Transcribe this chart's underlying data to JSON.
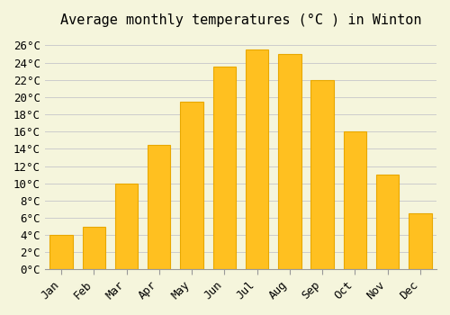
{
  "title": "Average monthly temperatures (°C ) in Winton",
  "months": [
    "Jan",
    "Feb",
    "Mar",
    "Apr",
    "May",
    "Jun",
    "Jul",
    "Aug",
    "Sep",
    "Oct",
    "Nov",
    "Dec"
  ],
  "values": [
    4,
    5,
    10,
    14.5,
    19.5,
    23.5,
    25.5,
    25,
    22,
    16,
    11,
    6.5
  ],
  "bar_color": "#FFC020",
  "bar_edge_color": "#E8A800",
  "background_color": "#F5F5DC",
  "grid_color": "#CCCCCC",
  "ylim": [
    0,
    27
  ],
  "yticks": [
    0,
    2,
    4,
    6,
    8,
    10,
    12,
    14,
    16,
    18,
    20,
    22,
    24,
    26
  ],
  "title_fontsize": 11,
  "tick_fontsize": 9,
  "font_family": "monospace"
}
